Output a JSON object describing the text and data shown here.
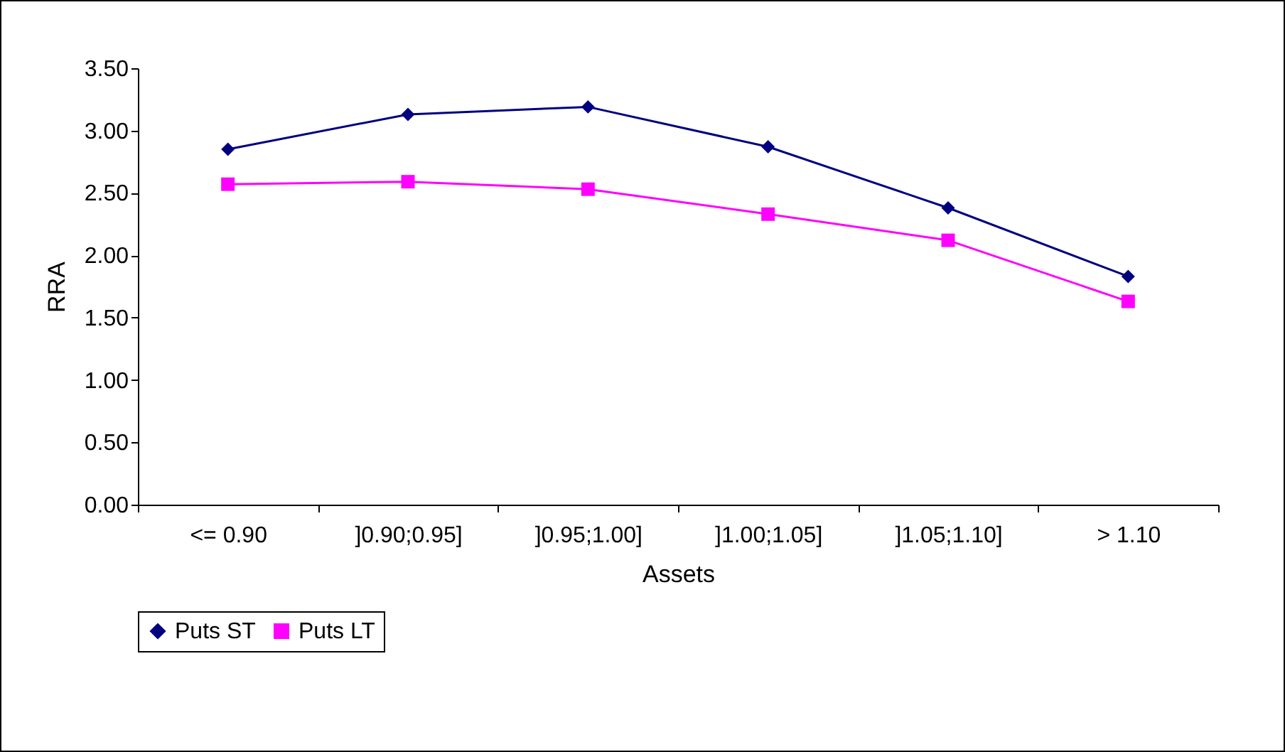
{
  "chart_data": {
    "type": "line",
    "xlabel": "Assets",
    "ylabel": "RRA",
    "categories": [
      "<=  0.90",
      "]0.90;0.95]",
      "]0.95;1.00]",
      "]1.00;1.05]",
      "]1.05;1.10]",
      "> 1.10"
    ],
    "series": [
      {
        "name": "Puts ST",
        "color": "#000080",
        "marker": "diamond",
        "values": [
          2.85,
          3.13,
          3.19,
          2.87,
          2.38,
          1.83
        ]
      },
      {
        "name": "Puts LT",
        "color": "#ff00ff",
        "marker": "square",
        "values": [
          2.57,
          2.59,
          2.53,
          2.33,
          2.12,
          1.63
        ]
      }
    ],
    "ylim": [
      0,
      3.5
    ],
    "yticks": [
      {
        "value": 0,
        "label": "0.00"
      },
      {
        "value": 0.5,
        "label": "0.50"
      },
      {
        "value": 1,
        "label": "1.00"
      },
      {
        "value": 1.5,
        "label": "1.50"
      },
      {
        "value": 2,
        "label": "2.00"
      },
      {
        "value": 2.5,
        "label": "2.50"
      },
      {
        "value": 3,
        "label": "3.00"
      },
      {
        "value": 3.5,
        "label": "3.50"
      }
    ],
    "grid": false,
    "legend": "bottom",
    "line_style": "solid"
  }
}
